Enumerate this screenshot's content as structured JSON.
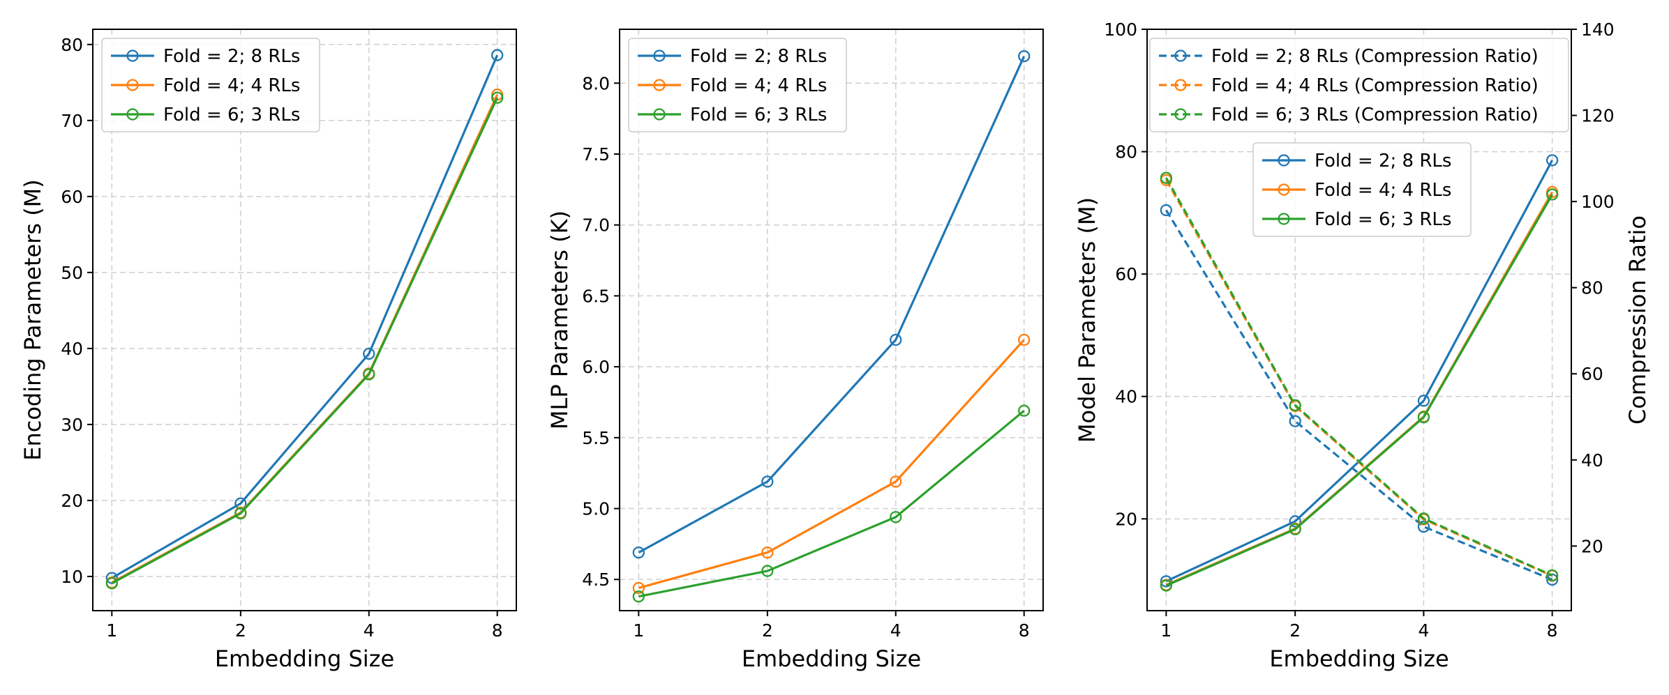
{
  "colors": {
    "fold2": "#1f77b4",
    "fold4": "#ff7f0e",
    "fold6": "#2ca02c"
  },
  "chart_data": [
    {
      "type": "line",
      "xlabel": "Embedding Size",
      "ylabel": "Encoding Parameters (M)",
      "categories": [
        "1",
        "2",
        "4",
        "8"
      ],
      "ylim": [
        5.5,
        82
      ],
      "yticks": [
        10,
        20,
        30,
        40,
        50,
        60,
        70,
        80
      ],
      "ytick_labels": [
        "10",
        "20",
        "30",
        "40",
        "50",
        "60",
        "70",
        "80"
      ],
      "grid": true,
      "legend_position": "top-left",
      "series": [
        {
          "name": "Fold = 2; 8 RLs",
          "values": [
            9.8,
            19.6,
            39.3,
            78.6
          ],
          "color": "#1f77b4",
          "style": "solid"
        },
        {
          "name": "Fold = 4; 4 RLs",
          "values": [
            9.2,
            18.4,
            36.7,
            73.4
          ],
          "color": "#ff7f0e",
          "style": "solid"
        },
        {
          "name": "Fold = 6; 3 RLs",
          "values": [
            9.1,
            18.3,
            36.6,
            73.0
          ],
          "color": "#2ca02c",
          "style": "solid"
        }
      ]
    },
    {
      "type": "line",
      "xlabel": "Embedding Size",
      "ylabel": "MLP Parameters (K)",
      "categories": [
        "1",
        "2",
        "4",
        "8"
      ],
      "ylim": [
        4.28,
        8.38
      ],
      "yticks": [
        4.5,
        5.0,
        5.5,
        6.0,
        6.5,
        7.0,
        7.5,
        8.0
      ],
      "ytick_labels": [
        "4.5",
        "5.0",
        "5.5",
        "6.0",
        "6.5",
        "7.0",
        "7.5",
        "8.0"
      ],
      "grid": true,
      "legend_position": "top-left",
      "series": [
        {
          "name": "Fold = 2; 8 RLs",
          "values": [
            4.69,
            5.19,
            6.19,
            8.19
          ],
          "color": "#1f77b4",
          "style": "solid"
        },
        {
          "name": "Fold = 4; 4 RLs",
          "values": [
            4.44,
            4.69,
            5.19,
            6.19
          ],
          "color": "#ff7f0e",
          "style": "solid"
        },
        {
          "name": "Fold = 6; 3 RLs",
          "values": [
            4.38,
            4.56,
            4.94,
            5.69
          ],
          "color": "#2ca02c",
          "style": "solid"
        }
      ]
    },
    {
      "type": "line",
      "xlabel": "Embedding Size",
      "ylabel": "Model Parameters (M)",
      "y2label": "Compression Ratio",
      "categories": [
        "1",
        "2",
        "4",
        "8"
      ],
      "ylim": [
        5,
        100
      ],
      "yticks": [
        20,
        40,
        60,
        80,
        100
      ],
      "ytick_labels": [
        "20",
        "40",
        "60",
        "80",
        "100"
      ],
      "y2lim": [
        5,
        140
      ],
      "y2ticks": [
        20,
        40,
        60,
        80,
        100,
        120,
        140
      ],
      "y2tick_labels": [
        "20",
        "40",
        "60",
        "80",
        "100",
        "120",
        "140"
      ],
      "grid": true,
      "legend_position": "top",
      "legend2_position": "upper center-right",
      "series": [
        {
          "name": "Fold = 2; 8 RLs",
          "values": [
            9.8,
            19.6,
            39.3,
            78.6
          ],
          "color": "#1f77b4",
          "style": "solid",
          "axis": "left"
        },
        {
          "name": "Fold = 4; 4 RLs",
          "values": [
            9.2,
            18.4,
            36.7,
            73.4
          ],
          "color": "#ff7f0e",
          "style": "solid",
          "axis": "left"
        },
        {
          "name": "Fold = 6; 3 RLs",
          "values": [
            9.1,
            18.3,
            36.6,
            73.0
          ],
          "color": "#2ca02c",
          "style": "solid",
          "axis": "left"
        },
        {
          "name": "Fold = 2; 8 RLs (Compression Ratio)",
          "values": [
            98,
            49,
            24.5,
            12.2
          ],
          "color": "#1f77b4",
          "style": "dashed",
          "axis": "right"
        },
        {
          "name": "Fold = 4; 4 RLs (Compression Ratio)",
          "values": [
            105,
            52.5,
            26.2,
            13.1
          ],
          "color": "#ff7f0e",
          "style": "dashed",
          "axis": "right"
        },
        {
          "name": "Fold = 6; 3 RLs (Compression Ratio)",
          "values": [
            105.5,
            52.7,
            26.4,
            13.2
          ],
          "color": "#2ca02c",
          "style": "dashed",
          "axis": "right"
        }
      ]
    }
  ]
}
